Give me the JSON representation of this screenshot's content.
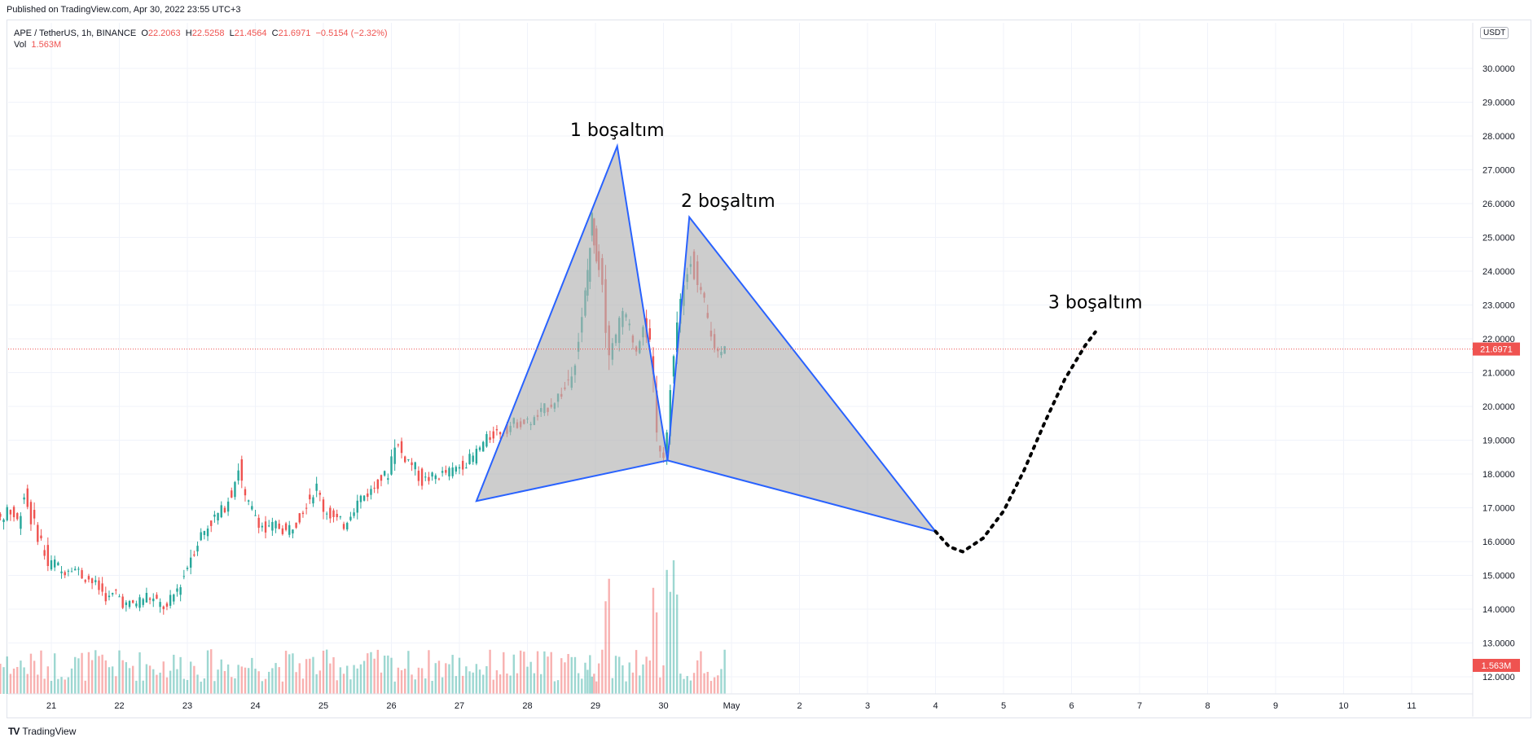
{
  "header": {
    "published": "Published on TradingView.com, Apr 30, 2022 23:55 UTC+3"
  },
  "legend": {
    "symbol": "APE / TetherUS, 1h, BINANCE",
    "o_label": "O",
    "o_val": "22.2063",
    "h_label": "H",
    "h_val": "22.5258",
    "l_label": "L",
    "l_val": "21.4564",
    "c_label": "C",
    "c_val": "21.6971",
    "change": "−0.5154 (−2.32%)",
    "vol_label": "Vol",
    "vol_val": "1.563M"
  },
  "footer": {
    "brand": "TradingView",
    "logo_icon": "tradingview-logo-icon"
  },
  "colors": {
    "up": "#26a69a",
    "down": "#ef5350",
    "pattern_fill": "#b2b2b2",
    "pattern_line": "#2962ff",
    "price_line": "#ef5350",
    "grid": "#f0f3fa"
  },
  "chart_data": {
    "type": "candlestick",
    "symbol": "APE / TetherUS",
    "interval": "1h",
    "exchange": "BINANCE",
    "currency_label": "USDT",
    "last_price": "21.6971",
    "last_volume": "1.563M",
    "y_ticks": [
      "12.0000",
      "13.0000",
      "14.0000",
      "15.0000",
      "16.0000",
      "17.0000",
      "18.0000",
      "19.0000",
      "20.0000",
      "21.0000",
      "22.0000",
      "23.0000",
      "24.0000",
      "25.0000",
      "26.0000",
      "27.0000",
      "28.0000",
      "29.0000",
      "30.0000"
    ],
    "ylim": [
      11.7,
      30.5
    ],
    "x_ticks": [
      "21",
      "22",
      "23",
      "24",
      "25",
      "26",
      "27",
      "28",
      "29",
      "30",
      "May",
      "2",
      "3",
      "4",
      "5",
      "6",
      "7",
      "8",
      "9",
      "10",
      "11"
    ],
    "price_path": [
      [
        20.0,
        16.0
      ],
      [
        20.1,
        16.9
      ],
      [
        20.2,
        17.2
      ],
      [
        20.3,
        16.5
      ],
      [
        20.4,
        17.0
      ],
      [
        20.55,
        16.6
      ],
      [
        20.65,
        17.4
      ],
      [
        20.75,
        16.7
      ],
      [
        20.9,
        16.0
      ],
      [
        21.0,
        15.3
      ],
      [
        21.1,
        15.4
      ],
      [
        21.2,
        15.1
      ],
      [
        21.35,
        15.3
      ],
      [
        21.5,
        15.0
      ],
      [
        21.6,
        14.9
      ],
      [
        21.75,
        14.6
      ],
      [
        21.9,
        14.3
      ],
      [
        22.0,
        14.5
      ],
      [
        22.15,
        14.1
      ],
      [
        22.3,
        14.2
      ],
      [
        22.45,
        14.4
      ],
      [
        22.6,
        14.2
      ],
      [
        22.75,
        14.0
      ],
      [
        22.9,
        14.6
      ],
      [
        23.0,
        15.0
      ],
      [
        23.1,
        15.6
      ],
      [
        23.25,
        16.2
      ],
      [
        23.4,
        16.6
      ],
      [
        23.55,
        16.9
      ],
      [
        23.7,
        17.5
      ],
      [
        23.8,
        18.2
      ],
      [
        23.9,
        17.2
      ],
      [
        24.05,
        16.8
      ],
      [
        24.2,
        16.3
      ],
      [
        24.35,
        16.5
      ],
      [
        24.5,
        16.3
      ],
      [
        24.65,
        16.6
      ],
      [
        24.8,
        17.2
      ],
      [
        24.95,
        17.6
      ],
      [
        25.05,
        17.0
      ],
      [
        25.2,
        16.7
      ],
      [
        25.35,
        16.5
      ],
      [
        25.45,
        16.9
      ],
      [
        25.6,
        17.3
      ],
      [
        25.75,
        17.5
      ],
      [
        25.9,
        17.9
      ],
      [
        26.0,
        18.0
      ],
      [
        26.1,
        19.0
      ],
      [
        26.2,
        18.6
      ],
      [
        26.35,
        18.3
      ],
      [
        26.5,
        17.8
      ],
      [
        26.65,
        17.9
      ],
      [
        26.8,
        18.0
      ],
      [
        26.95,
        18.1
      ],
      [
        27.1,
        18.3
      ],
      [
        27.25,
        18.5
      ],
      [
        27.4,
        18.9
      ],
      [
        27.55,
        19.2
      ],
      [
        27.7,
        19.3
      ],
      [
        27.85,
        19.5
      ],
      [
        28.0,
        19.5
      ],
      [
        28.15,
        19.6
      ],
      [
        28.3,
        19.9
      ],
      [
        28.45,
        20.2
      ],
      [
        28.6,
        20.5
      ],
      [
        28.75,
        21.5
      ],
      [
        28.85,
        22.5
      ],
      [
        28.92,
        24.0
      ],
      [
        28.98,
        25.5
      ],
      [
        29.05,
        24.5
      ],
      [
        29.15,
        23.8
      ],
      [
        29.25,
        21.5
      ],
      [
        29.35,
        22.0
      ],
      [
        29.45,
        22.8
      ],
      [
        29.55,
        22.3
      ],
      [
        29.65,
        21.7
      ],
      [
        29.75,
        22.6
      ],
      [
        29.85,
        21.8
      ],
      [
        29.95,
        19.0
      ],
      [
        30.05,
        18.6
      ],
      [
        30.15,
        20.5
      ],
      [
        30.25,
        22.5
      ],
      [
        30.35,
        23.5
      ],
      [
        30.45,
        24.5
      ],
      [
        30.55,
        23.5
      ],
      [
        30.65,
        23.0
      ],
      [
        30.75,
        22.0
      ],
      [
        30.85,
        21.6
      ],
      [
        30.95,
        21.9
      ]
    ],
    "volume_series_note": "",
    "pattern_polygon_1": [
      [
        27.25,
        17.2
      ],
      [
        29.32,
        27.7
      ],
      [
        30.06,
        18.4
      ]
    ],
    "pattern_polygon_2": [
      [
        30.06,
        18.4
      ],
      [
        30.38,
        25.6
      ],
      [
        34.0,
        16.3
      ]
    ],
    "projection_path": [
      [
        34.0,
        16.3
      ],
      [
        34.2,
        15.85
      ],
      [
        34.4,
        15.7
      ],
      [
        34.7,
        16.1
      ],
      [
        35.0,
        16.9
      ],
      [
        35.3,
        18.1
      ],
      [
        35.6,
        19.5
      ],
      [
        35.9,
        20.8
      ],
      [
        36.2,
        21.8
      ],
      [
        36.35,
        22.2
      ]
    ],
    "annotations": [
      {
        "text": "1 boşaltım",
        "x": 29.32,
        "y": 28.0
      },
      {
        "text": "2 boşaltım",
        "x": 30.95,
        "y": 25.9
      },
      {
        "text": "3 boşaltım",
        "x": 36.35,
        "y": 22.9
      }
    ]
  }
}
